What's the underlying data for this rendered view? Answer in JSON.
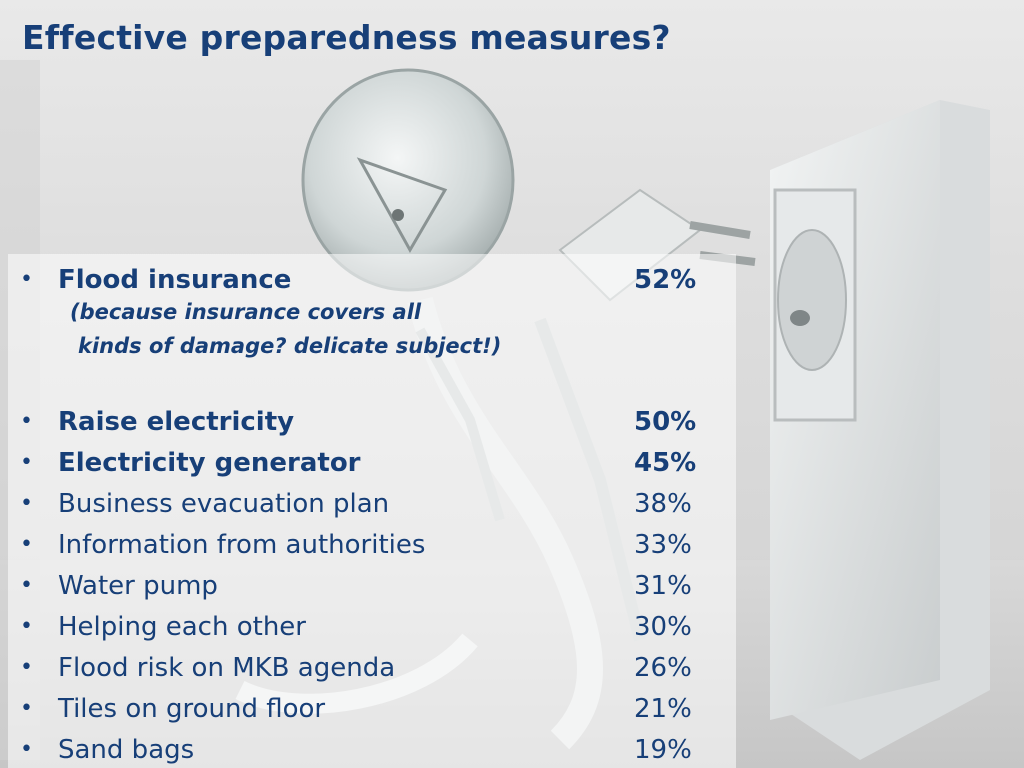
{
  "title": "Effective preparedness measures?",
  "colors": {
    "text": "#173f78",
    "panel": "rgba(255,255,255,0.55)",
    "background": "#d9d9d9"
  },
  "background_image": "light-bulb-robot-plugging-into-wall-socket",
  "highlight_item": {
    "label": "Flood insurance",
    "value": "52%",
    "note_line1": "(because insurance covers all",
    "note_line2": "kinds of damage? delicate subject!)"
  },
  "items": [
    {
      "label": "Raise electricity",
      "value": "50%",
      "bold": true
    },
    {
      "label": "Electricity generator",
      "value": "45%",
      "bold": true
    },
    {
      "label": "Business evacuation plan",
      "value": "38%",
      "bold": false
    },
    {
      "label": "Information from authorities",
      "value": "33%",
      "bold": false
    },
    {
      "label": "Water pump",
      "value": "31%",
      "bold": false
    },
    {
      "label": "Helping each other",
      "value": "30%",
      "bold": false
    },
    {
      "label": "Flood risk on MKB agenda",
      "value": "26%",
      "bold": false
    },
    {
      "label": "Tiles on ground floor",
      "value": "21%",
      "bold": false
    },
    {
      "label": "Sand bags",
      "value": "19%",
      "bold": false
    }
  ]
}
